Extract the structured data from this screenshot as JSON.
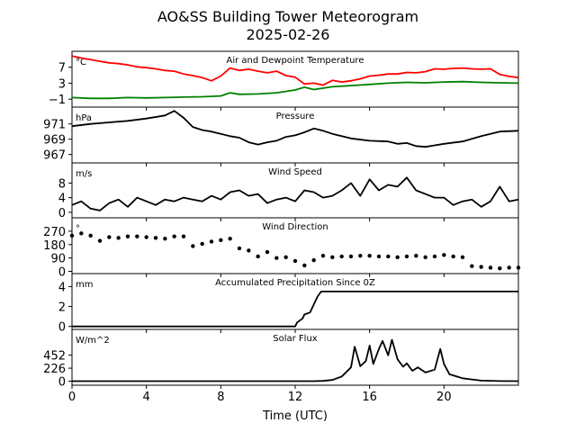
{
  "figure": {
    "title": "AO&SS Building Tower Meteorogram",
    "subtitle": "2025-02-26",
    "xlabel": "Time (UTC)",
    "xticks": [
      0,
      4,
      8,
      12,
      16,
      20
    ],
    "xlim": [
      0,
      24
    ]
  },
  "chart_data": [
    {
      "type": "line",
      "title": "Air and Dewpoint Temperature",
      "ylabel": "°C",
      "ylim": [
        -3,
        11
      ],
      "yticks": [
        -1,
        3,
        7
      ],
      "series": [
        {
          "color": "#ff0000",
          "x": [
            0,
            0.5,
            1,
            1.5,
            2,
            2.5,
            3,
            3.5,
            4,
            4.5,
            5,
            5.5,
            6,
            6.5,
            7,
            7.5,
            8,
            8.5,
            9,
            9.5,
            10,
            10.5,
            11,
            11.5,
            12,
            12.5,
            13,
            13.5,
            14,
            14.5,
            15,
            15.5,
            16,
            16.5,
            17,
            17.5,
            18,
            18.5,
            19,
            19.5,
            20,
            20.5,
            21,
            21.5,
            22,
            22.5,
            23,
            23.5,
            24
          ],
          "values": [
            9.8,
            9.3,
            8.9,
            8.5,
            8.1,
            7.9,
            7.6,
            7.1,
            6.9,
            6.6,
            6.2,
            6.0,
            5.3,
            4.9,
            4.4,
            3.6,
            4.8,
            6.8,
            6.2,
            6.5,
            6.0,
            5.6,
            6.0,
            4.9,
            4.5,
            2.8,
            3.0,
            2.5,
            3.7,
            3.3,
            3.6,
            4.1,
            4.8,
            5.0,
            5.3,
            5.3,
            5.7,
            5.6,
            5.9,
            6.6,
            6.5,
            6.7,
            6.8,
            6.6,
            6.5,
            6.6,
            5.2,
            4.7,
            4.4
          ]
        },
        {
          "color": "#008000",
          "x": [
            0,
            1,
            2,
            3,
            4,
            5,
            6,
            7,
            8,
            8.5,
            9,
            10,
            11,
            12,
            12.5,
            13,
            14,
            15,
            16,
            17,
            18,
            19,
            20,
            21,
            22,
            23,
            24
          ],
          "values": [
            -0.6,
            -0.8,
            -0.8,
            -0.6,
            -0.7,
            -0.6,
            -0.5,
            -0.4,
            -0.2,
            0.6,
            0.2,
            0.3,
            0.6,
            1.3,
            2.0,
            1.4,
            2.1,
            2.4,
            2.7,
            3.0,
            3.2,
            3.1,
            3.3,
            3.4,
            3.2,
            3.1,
            3.0
          ]
        }
      ]
    },
    {
      "type": "line",
      "title": "Pressure",
      "ylabel": "hPa",
      "ylim": [
        965.9,
        973.2
      ],
      "yticks": [
        967,
        969,
        971
      ],
      "series": [
        {
          "color": "#000000",
          "x": [
            0,
            1,
            2,
            3,
            4,
            5,
            5.5,
            6,
            6.5,
            7,
            7.5,
            8,
            8.5,
            9,
            9.5,
            10,
            10.5,
            11,
            11.5,
            12,
            12.5,
            13,
            13.5,
            14,
            15,
            16,
            17,
            17.5,
            18,
            18.5,
            19,
            19.5,
            20,
            21,
            22,
            23,
            24
          ],
          "values": [
            970.7,
            971.0,
            971.2,
            971.4,
            971.7,
            972.1,
            972.7,
            971.8,
            970.6,
            970.2,
            970.0,
            969.7,
            969.4,
            969.2,
            968.6,
            968.3,
            968.6,
            968.8,
            969.3,
            969.5,
            969.9,
            970.4,
            970.1,
            969.7,
            969.1,
            968.8,
            968.7,
            968.4,
            968.5,
            968.1,
            968.0,
            968.2,
            968.4,
            968.7,
            969.4,
            970.0,
            970.1
          ]
        }
      ]
    },
    {
      "type": "line",
      "title": "Wind Speed",
      "ylabel": "m/s",
      "ylim": [
        -1.5,
        13.5
      ],
      "yticks": [
        0,
        4,
        8
      ],
      "series": [
        {
          "color": "#000000",
          "x": [
            0,
            0.5,
            1,
            1.5,
            2,
            2.5,
            3,
            3.5,
            4,
            4.5,
            5,
            5.5,
            6,
            6.5,
            7,
            7.5,
            8,
            8.5,
            9,
            9.5,
            10,
            10.5,
            11,
            11.5,
            12,
            12.5,
            13,
            13.5,
            14,
            14.5,
            15,
            15.5,
            16,
            16.5,
            17,
            17.5,
            18,
            18.5,
            19,
            19.5,
            20,
            20.5,
            21,
            21.5,
            22,
            22.5,
            23,
            23.5,
            24
          ],
          "values": [
            2.0,
            3.0,
            1.0,
            0.5,
            2.5,
            3.5,
            1.5,
            4.0,
            3.0,
            2.0,
            3.5,
            3.0,
            4.0,
            3.5,
            3.0,
            4.5,
            3.5,
            5.5,
            6.0,
            4.5,
            5.0,
            2.5,
            3.5,
            4.0,
            3.0,
            6.0,
            5.5,
            4.0,
            4.5,
            6.0,
            8.0,
            4.5,
            9.0,
            6.0,
            7.5,
            7.0,
            9.5,
            6.0,
            5.0,
            4.0,
            4.0,
            2.0,
            3.0,
            3.5,
            1.5,
            3.0,
            7.0,
            3.0,
            3.5
          ]
        }
      ]
    },
    {
      "type": "scatter",
      "title": "Wind Direction",
      "ylabel": "°",
      "ylim": [
        -15,
        360
      ],
      "yticks": [
        0,
        90,
        180,
        270
      ],
      "series": [
        {
          "color": "#000000",
          "x": [
            0,
            0.5,
            1,
            1.5,
            2,
            2.5,
            3,
            3.5,
            4,
            4.5,
            5,
            5.5,
            6,
            6.5,
            7,
            7.5,
            8,
            8.5,
            9,
            9.5,
            10,
            10.5,
            11,
            11.5,
            12,
            12.5,
            13,
            13.5,
            14,
            14.5,
            15,
            15.5,
            16,
            16.5,
            17,
            17.5,
            18,
            18.5,
            19,
            19.5,
            20,
            20.5,
            21,
            21.5,
            22,
            22.5,
            23,
            23.5,
            24
          ],
          "values": [
            240,
            255,
            240,
            205,
            230,
            225,
            235,
            235,
            230,
            225,
            220,
            235,
            235,
            170,
            185,
            200,
            210,
            220,
            155,
            140,
            100,
            130,
            90,
            95,
            70,
            40,
            75,
            105,
            95,
            100,
            100,
            105,
            105,
            100,
            100,
            95,
            100,
            105,
            95,
            100,
            110,
            100,
            95,
            35,
            30,
            25,
            20,
            25,
            25
          ]
        }
      ]
    },
    {
      "type": "line",
      "title": "Accumulated Precipitation Since 0Z",
      "ylabel": "mm",
      "ylim": [
        -0.3,
        5.3
      ],
      "yticks": [
        0,
        2,
        4
      ],
      "series": [
        {
          "color": "#000000",
          "x": [
            0,
            12.0,
            12.1,
            12.4,
            12.5,
            12.8,
            13.0,
            13.2,
            13.4,
            24
          ],
          "values": [
            0,
            0,
            0.4,
            0.8,
            1.2,
            1.4,
            2.2,
            3.0,
            3.5,
            3.5
          ]
        }
      ]
    },
    {
      "type": "line",
      "title": "Solar Flux",
      "ylabel": "W/m^2",
      "ylim": [
        -70,
        900
      ],
      "yticks": [
        0,
        226,
        452
      ],
      "series": [
        {
          "color": "#000000",
          "x": [
            0,
            13,
            13.5,
            14,
            14.5,
            15,
            15.2,
            15.5,
            15.8,
            16.0,
            16.2,
            16.5,
            16.7,
            17.0,
            17.2,
            17.5,
            17.8,
            18.0,
            18.3,
            18.6,
            19.0,
            19.5,
            19.8,
            20.0,
            20.3,
            20.7,
            21.0,
            21.5,
            22,
            23,
            24
          ],
          "values": [
            0,
            0,
            5,
            20,
            80,
            240,
            600,
            260,
            350,
            620,
            300,
            560,
            700,
            450,
            720,
            380,
            250,
            310,
            180,
            240,
            150,
            200,
            560,
            300,
            120,
            80,
            50,
            30,
            10,
            2,
            0
          ]
        }
      ]
    }
  ]
}
